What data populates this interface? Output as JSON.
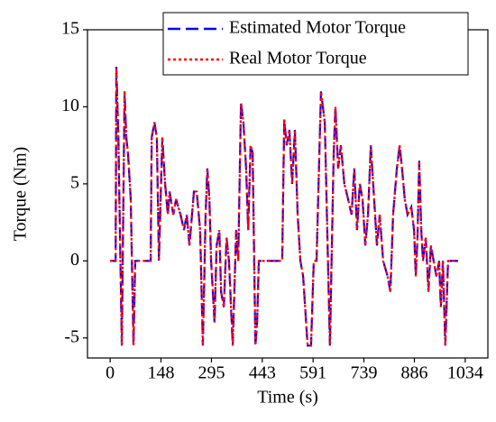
{
  "chart_data": {
    "type": "line",
    "xlabel": "Time (s)",
    "ylabel": "Torque (Nm)",
    "x": [
      0,
      13,
      16,
      18,
      24,
      34,
      42,
      47,
      52,
      60,
      68,
      73,
      118,
      121,
      129,
      136,
      142,
      152,
      160,
      168,
      173,
      184,
      192,
      205,
      215,
      223,
      231,
      244,
      252,
      262,
      270,
      278,
      283,
      289,
      294,
      304,
      310,
      318,
      323,
      331,
      339,
      346,
      357,
      367,
      373,
      381,
      388,
      396,
      402,
      409,
      415,
      423,
      428,
      433,
      501,
      507,
      514,
      522,
      530,
      538,
      546,
      554,
      562,
      575,
      585,
      593,
      601,
      614,
      625,
      640,
      651,
      656,
      664,
      672,
      682,
      693,
      703,
      711,
      719,
      727,
      735,
      743,
      751,
      759,
      766,
      777,
      785,
      795,
      808,
      816,
      824,
      835,
      843,
      850,
      858,
      866,
      877,
      885,
      890,
      895,
      900,
      906,
      911,
      919,
      927,
      934,
      942,
      950,
      958,
      963,
      969,
      976,
      984,
      1013
    ],
    "series": [
      {
        "name": "Estimated Motor Torque",
        "color": "#0000ff",
        "values": [
          0,
          0,
          0,
          12.6,
          8,
          -5.5,
          11,
          8,
          7,
          4,
          -5.5,
          0,
          0,
          8,
          9,
          8,
          0,
          8,
          5,
          3,
          4.5,
          3,
          4,
          3,
          2,
          3,
          1,
          4.5,
          4.5,
          2,
          -5.5,
          3,
          6,
          4,
          0,
          -4,
          1,
          2,
          -2,
          -3,
          1.5,
          0,
          -5.5,
          2,
          0,
          10.3,
          9,
          6,
          2,
          7.5,
          7,
          -5.5,
          -4,
          0,
          0,
          9.2,
          7.5,
          8.5,
          5,
          8.5,
          3,
          0,
          -1,
          -5.5,
          -5.5,
          0,
          0,
          11,
          9,
          -5.5,
          7,
          10,
          6,
          7.5,
          5,
          4,
          3,
          6,
          2,
          5,
          4,
          1,
          3,
          7.5,
          5,
          1,
          3,
          0,
          -1,
          -2,
          3,
          6,
          7.5,
          6,
          4,
          3,
          3.5,
          2,
          -1,
          1.5,
          6.5,
          2,
          0,
          1.5,
          -2,
          1,
          0,
          -1,
          0,
          -3,
          0,
          -5.5,
          0,
          0
        ]
      },
      {
        "name": "Real Motor Torque",
        "color": "#ff0000",
        "values": [
          0,
          0,
          0,
          12.5,
          8,
          -5.5,
          11,
          8,
          7,
          4,
          -5.5,
          0,
          0,
          8,
          9,
          8,
          0,
          8,
          5,
          3,
          4.5,
          3,
          4,
          3,
          2,
          3,
          1,
          4.5,
          4.5,
          2,
          -5.5,
          3,
          6,
          4,
          0,
          -4,
          1,
          2,
          -2,
          -3,
          1.5,
          0,
          -5.5,
          2,
          0,
          10.2,
          9,
          6,
          2,
          7.5,
          7,
          -5.5,
          -4,
          0,
          0,
          9.2,
          7.5,
          8.5,
          5,
          8.5,
          3,
          0,
          -1,
          -5.5,
          -5.5,
          0,
          0,
          11,
          9,
          -5.5,
          7,
          10,
          6,
          7.5,
          5,
          4,
          3,
          6,
          2,
          5,
          4,
          1,
          3,
          7.5,
          5,
          1,
          3,
          0,
          -1,
          -2,
          3,
          6,
          7.5,
          6,
          4,
          3,
          3.5,
          2,
          -1,
          1.5,
          6.5,
          2,
          0,
          1.5,
          -2,
          1,
          0,
          -1,
          0,
          -3,
          0,
          -5.5,
          0,
          0
        ]
      }
    ],
    "xlim": [
      -66,
      1100
    ],
    "xticks": [
      0,
      148,
      295,
      443,
      591,
      739,
      886,
      1034
    ],
    "ylim": [
      -6.3,
      15
    ],
    "yticks": [
      -5,
      0,
      5,
      10,
      15
    ],
    "grid": false,
    "legend": "top-right"
  }
}
